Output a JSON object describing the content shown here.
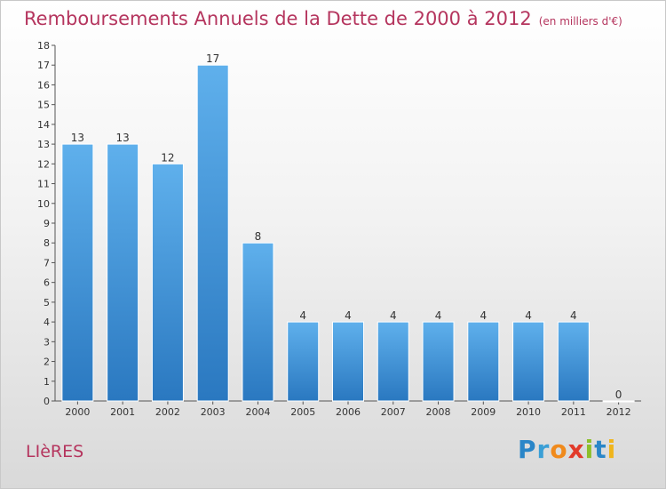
{
  "chart_data": {
    "type": "bar",
    "title": "Remboursements Annuels de la Dette de 2000 à 2012",
    "unit": "(en milliers d'€)",
    "categories": [
      "2000",
      "2001",
      "2002",
      "2003",
      "2004",
      "2005",
      "2006",
      "2007",
      "2008",
      "2009",
      "2010",
      "2011",
      "2012"
    ],
    "values": [
      13,
      13,
      12,
      17,
      8,
      4,
      4,
      4,
      4,
      4,
      4,
      4,
      0
    ],
    "ylim": [
      0,
      18
    ],
    "yticks": [
      0,
      1,
      2,
      3,
      4,
      5,
      6,
      7,
      8,
      9,
      10,
      11,
      12,
      13,
      14,
      15,
      16,
      17,
      18
    ],
    "grid": false,
    "bar_color": "#3a8fd8"
  },
  "commune": "LIèRES",
  "logo": {
    "letters": [
      "P",
      "r",
      "o",
      "x",
      "i",
      "t",
      "i"
    ]
  }
}
